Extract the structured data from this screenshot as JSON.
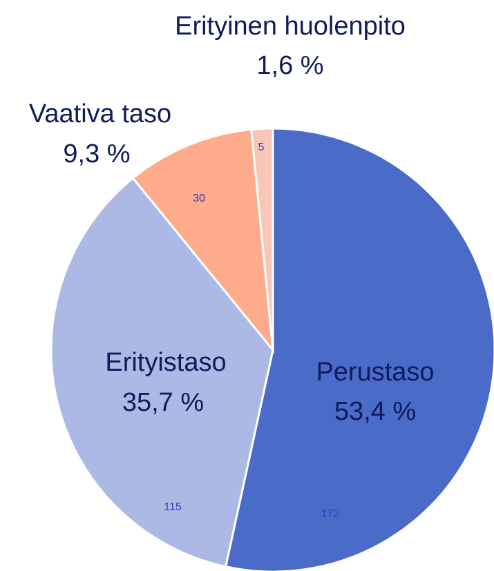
{
  "chart_data": {
    "type": "pie",
    "categories": [
      "Perustaso",
      "Erityistaso",
      "Vaativa taso",
      "Erityinen huolenpito"
    ],
    "values": [
      172,
      115,
      30,
      5
    ],
    "shares": [
      53.4,
      35.7,
      9.3,
      1.6
    ],
    "share_labels": [
      "53,4 %",
      "35,7 %",
      "9,3 %",
      "1,6 %"
    ],
    "colors": [
      "#4a6bc8",
      "#abb9e4",
      "#fdab8b",
      "#f8c6b7"
    ]
  }
}
